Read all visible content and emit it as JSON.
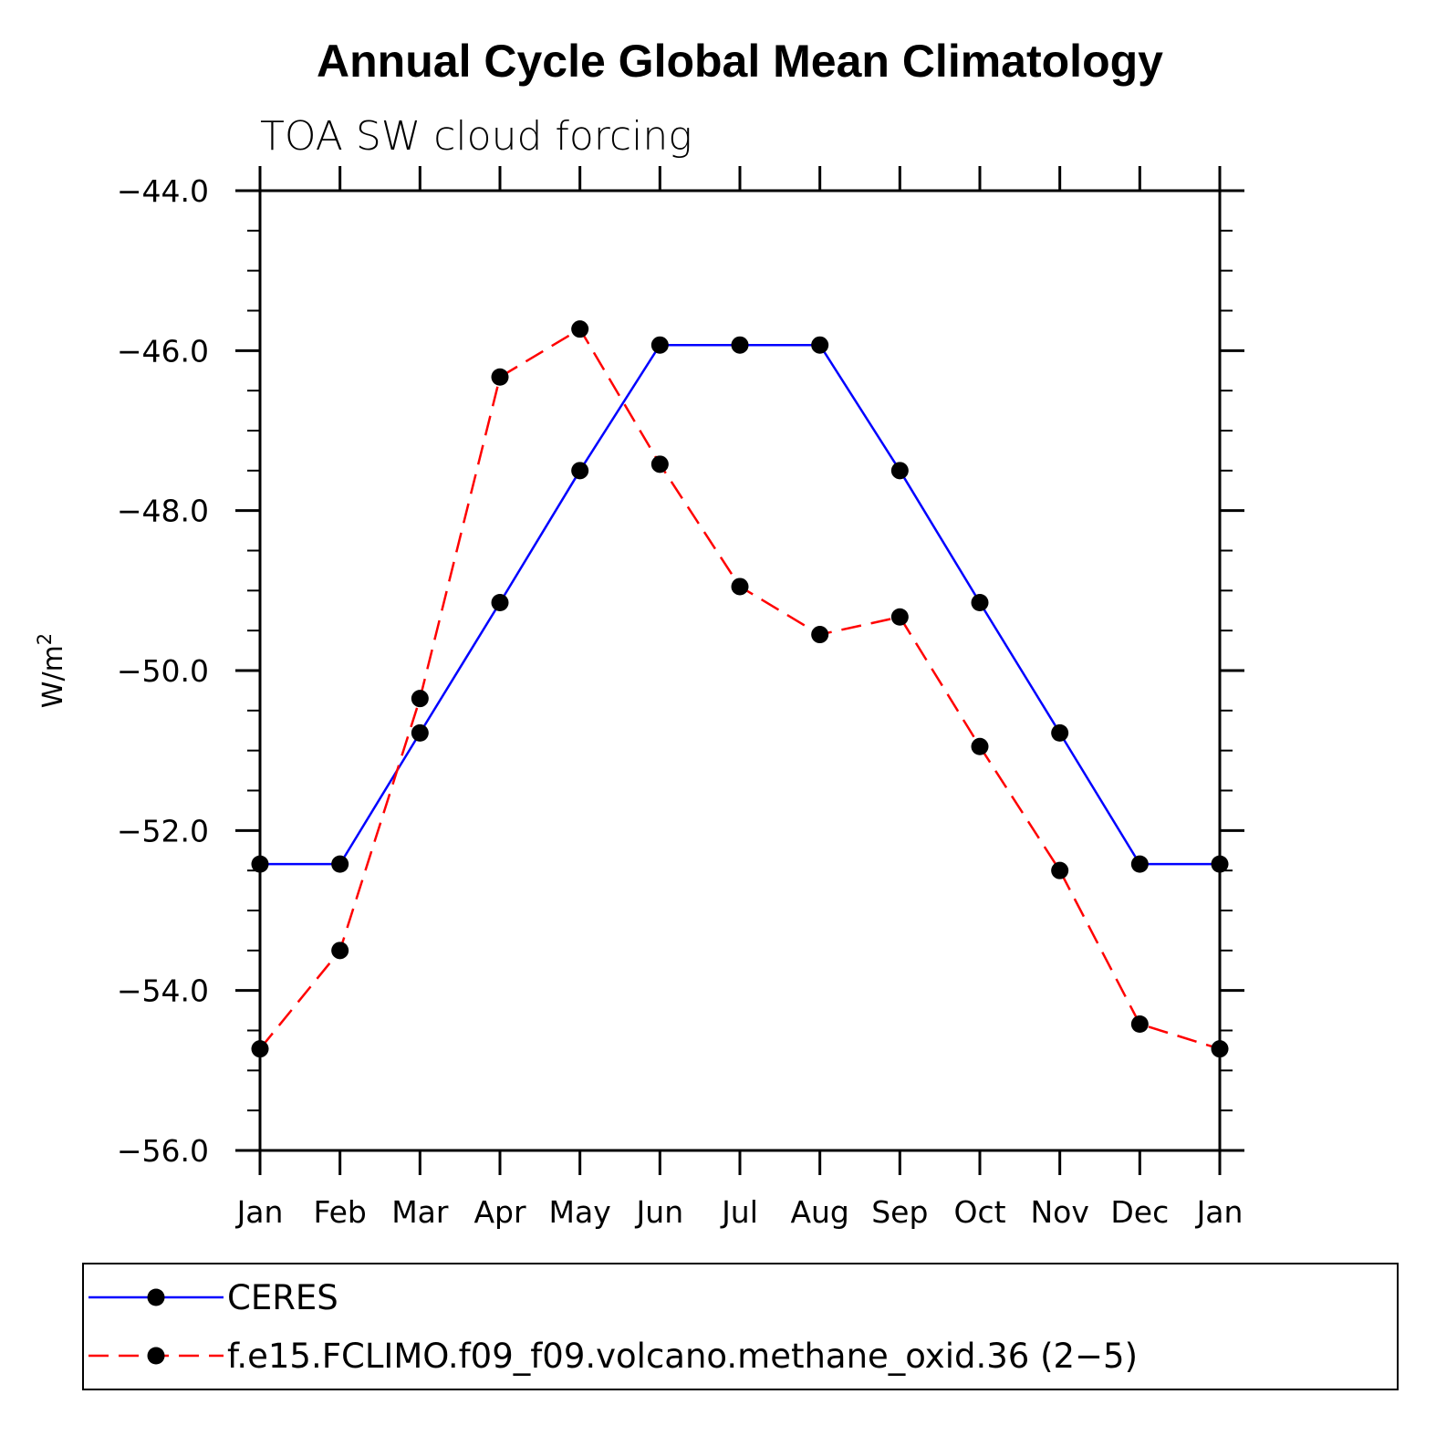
{
  "chart_data": {
    "type": "line",
    "title": "Annual Cycle Global Mean Climatology",
    "subtitle": "TOA SW cloud forcing",
    "ylabel": "W/m",
    "ylabel_superscript": "2",
    "xlabel": "",
    "categories": [
      "Jan",
      "Feb",
      "Mar",
      "Apr",
      "May",
      "Jun",
      "Jul",
      "Aug",
      "Sep",
      "Oct",
      "Nov",
      "Dec",
      "Jan"
    ],
    "ylim": [
      -56,
      -44
    ],
    "yticks": [
      -44,
      -46,
      -48,
      -50,
      -52,
      -54,
      -56
    ],
    "ytick_labels": [
      "−44.0",
      "−46.0",
      "−48.0",
      "−50.0",
      "−52.0",
      "−54.0",
      "−56.0"
    ],
    "grid": false,
    "legend_position": "bottom",
    "series": [
      {
        "name": "CERES",
        "color": "#0000ff",
        "dash": "solid",
        "values": [
          -52.42,
          -52.42,
          -50.78,
          -49.15,
          -47.5,
          -45.93,
          -45.93,
          -45.93,
          -47.5,
          -49.15,
          -50.78,
          -52.42,
          -52.42
        ]
      },
      {
        "name": "f.e15.FCLIMO.f09_f09.volcano.methane_oxid.36 (2−5)",
        "color": "#ff0000",
        "dash": "dashed",
        "values": [
          -54.73,
          -53.5,
          -50.35,
          -46.33,
          -45.73,
          -47.42,
          -48.95,
          -49.55,
          -49.33,
          -50.95,
          -52.5,
          -54.42,
          -54.73
        ]
      }
    ]
  }
}
